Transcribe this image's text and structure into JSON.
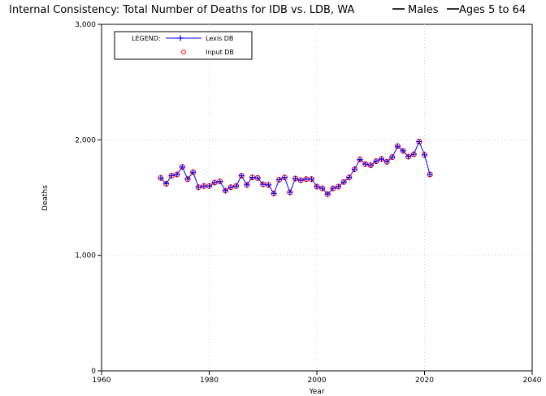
{
  "chart_data": {
    "type": "line",
    "title": "Internal Consistency: Total Number of Deaths for IDB vs. LDB, WA",
    "title_tags": [
      "Males",
      "Ages 5 to 64"
    ],
    "xlabel": "Year",
    "ylabel": "Deaths",
    "xlim": [
      1960,
      2040
    ],
    "ylim": [
      0,
      3000
    ],
    "xticks": [
      1960,
      1980,
      2000,
      2020,
      2040
    ],
    "yticks": [
      0,
      1000,
      2000,
      3000
    ],
    "xtick_labels": [
      "1960",
      "1980",
      "2000",
      "2020",
      "2040"
    ],
    "ytick_labels": [
      "0",
      "1,000",
      "2,000",
      "3,000"
    ],
    "grid": "dotted",
    "legend_title": "LEGEND:",
    "legend_position": "top-left",
    "x": [
      1971,
      1972,
      1973,
      1974,
      1975,
      1976,
      1977,
      1978,
      1979,
      1980,
      1981,
      1982,
      1983,
      1984,
      1985,
      1986,
      1987,
      1988,
      1989,
      1990,
      1991,
      1992,
      1993,
      1994,
      1995,
      1996,
      1997,
      1998,
      1999,
      2000,
      2001,
      2002,
      2003,
      2004,
      2005,
      2006,
      2007,
      2008,
      2009,
      2010,
      2011,
      2012,
      2013,
      2014,
      2015,
      2016,
      2017,
      2018,
      2019,
      2020,
      2021
    ],
    "series": [
      {
        "name": "Lexis DB",
        "marker": "plus",
        "color": "#0000ff",
        "values": [
          1670,
          1620,
          1690,
          1700,
          1765,
          1660,
          1720,
          1590,
          1600,
          1600,
          1630,
          1640,
          1560,
          1590,
          1600,
          1690,
          1610,
          1675,
          1670,
          1615,
          1610,
          1535,
          1655,
          1675,
          1545,
          1665,
          1650,
          1660,
          1660,
          1595,
          1580,
          1530,
          1580,
          1595,
          1635,
          1675,
          1745,
          1830,
          1790,
          1780,
          1815,
          1835,
          1810,
          1850,
          1945,
          1905,
          1855,
          1875,
          1985,
          1870,
          1700
        ]
      },
      {
        "name": "Input DB",
        "marker": "circle",
        "color": "#ff0000",
        "values": [
          1670,
          1620,
          1690,
          1700,
          1765,
          1660,
          1720,
          1590,
          1600,
          1600,
          1630,
          1640,
          1560,
          1590,
          1600,
          1690,
          1610,
          1675,
          1670,
          1615,
          1610,
          1535,
          1655,
          1675,
          1545,
          1665,
          1650,
          1660,
          1660,
          1595,
          1580,
          1530,
          1580,
          1595,
          1635,
          1675,
          1745,
          1830,
          1790,
          1780,
          1815,
          1835,
          1810,
          1850,
          1945,
          1905,
          1855,
          1875,
          1985,
          1870,
          1700
        ]
      }
    ]
  }
}
